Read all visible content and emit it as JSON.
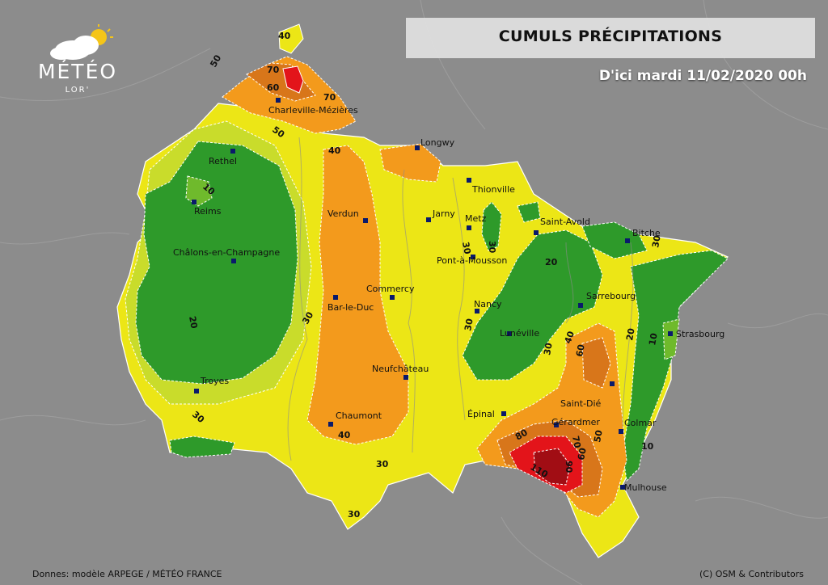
{
  "title": "CUMULS PRÉCIPITATIONS",
  "subtitle": "D'ici mardi 11/02/2020 00h",
  "logo": {
    "name": "MÉTÉO",
    "sub": "LOR'"
  },
  "footer": {
    "source": "Donnes: modèle ARPEGE / MÉTÉO FRANCE",
    "credit": "(C) OSM & Contributors"
  },
  "cities": [
    "Charleville-Mézières",
    "Longwy",
    "Rethel",
    "Thionville",
    "Reims",
    "Verdun",
    "Jarny",
    "Metz",
    "Saint-Avold",
    "Bitche",
    "Châlons-en-Champagne",
    "Pont-à-Mousson",
    "Commercy",
    "Bar-le-Duc",
    "Nancy",
    "Sarrebourg",
    "Lunéville",
    "Strasbourg",
    "Troyes",
    "Neufchâteau",
    "Saint-Dié",
    "Épinal",
    "Chaumont",
    "Gérardmer",
    "Colmar",
    "Mulhouse"
  ],
  "contour_labels": [
    "40",
    "50",
    "70",
    "60",
    "70",
    "50",
    "40",
    "10",
    "30",
    "30",
    "20",
    "20",
    "30",
    "30",
    "40",
    "60",
    "30",
    "20",
    "10",
    "30",
    "30",
    "40",
    "30",
    "80",
    "70",
    "50",
    "60",
    "90",
    "110",
    "10",
    "30"
  ],
  "colors": {
    "background": "#8a8a8a",
    "green": "#2e9a2a",
    "light_green": "#6fba2c",
    "yellow_green": "#c9dc2b",
    "yellow": "#ece616",
    "orange": "#f39a1c",
    "dark_orange": "#d8761a",
    "red": "#e3141a",
    "dark_red": "#a10d14"
  }
}
